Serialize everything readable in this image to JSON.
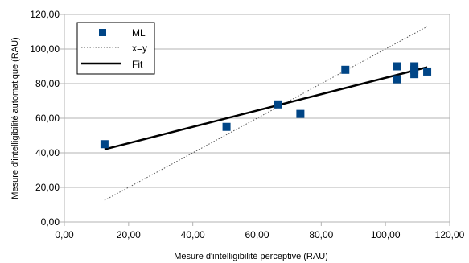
{
  "chart_data": {
    "type": "scatter",
    "xlabel": "Mesure d'intelligibilité perceptive (RAU)",
    "ylabel": "Mesure d'intelligibilité automatique (RAU)",
    "xlim": [
      0,
      120
    ],
    "ylim": [
      0,
      120
    ],
    "x_ticks": [
      "0,00",
      "20,00",
      "40,00",
      "60,00",
      "80,00",
      "100,00",
      "120,00"
    ],
    "y_ticks": [
      "0,00",
      "20,00",
      "40,00",
      "60,00",
      "80,00",
      "100,00",
      "120,00"
    ],
    "legend_position": "top-left",
    "grid": "horizontal",
    "series": [
      {
        "name": "ML",
        "kind": "points",
        "color": "#004586",
        "points": [
          {
            "x": 12.5,
            "y": 45.0
          },
          {
            "x": 50.5,
            "y": 55.0
          },
          {
            "x": 66.5,
            "y": 68.0
          },
          {
            "x": 73.5,
            "y": 62.5
          },
          {
            "x": 87.5,
            "y": 88.0
          },
          {
            "x": 103.5,
            "y": 90.0
          },
          {
            "x": 103.5,
            "y": 82.5
          },
          {
            "x": 109.0,
            "y": 90.0
          },
          {
            "x": 109.0,
            "y": 88.0
          },
          {
            "x": 109.0,
            "y": 85.5
          },
          {
            "x": 113.0,
            "y": 87.0
          }
        ]
      },
      {
        "name": "x=y",
        "kind": "dotted-line",
        "color": "#555555",
        "points": [
          {
            "x": 12.5,
            "y": 12.5
          },
          {
            "x": 113.0,
            "y": 113.0
          }
        ]
      },
      {
        "name": "Fit",
        "kind": "line",
        "color": "#000000",
        "points": [
          {
            "x": 12.5,
            "y": 42.0
          },
          {
            "x": 113.0,
            "y": 89.5
          }
        ]
      }
    ]
  }
}
